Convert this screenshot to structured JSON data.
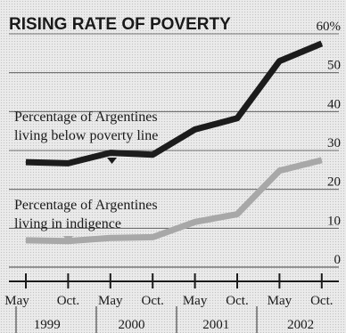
{
  "chart_data": {
    "type": "line",
    "title": "RISING RATE OF POVERTY",
    "x_labels": [
      "May",
      "Oct.",
      "May",
      "Oct.",
      "May",
      "Oct.",
      "May",
      "Oct."
    ],
    "years": [
      "1999",
      "2000",
      "2001",
      "2002"
    ],
    "y_ticks": [
      "0",
      "10",
      "20",
      "30",
      "40",
      "50",
      "60%"
    ],
    "ylim": [
      0,
      60
    ],
    "grid": true,
    "series": [
      {
        "name": "Percentage of Argentines living below poverty line",
        "label_lines": [
          "Percentage of Argentines",
          "living below poverty line"
        ],
        "color": "#1c1c1c",
        "values": [
          27,
          26.7,
          29.4,
          28.9,
          35.4,
          38.3,
          53,
          57.5
        ]
      },
      {
        "name": "Percentage of Argentines living in indigence",
        "label_lines": [
          "Percentage of Argentines",
          "living in indigence"
        ],
        "color": "#a8a8a8",
        "values": [
          6.9,
          6.7,
          7.5,
          7.7,
          11.6,
          13.6,
          24.8,
          27.5
        ]
      }
    ]
  }
}
